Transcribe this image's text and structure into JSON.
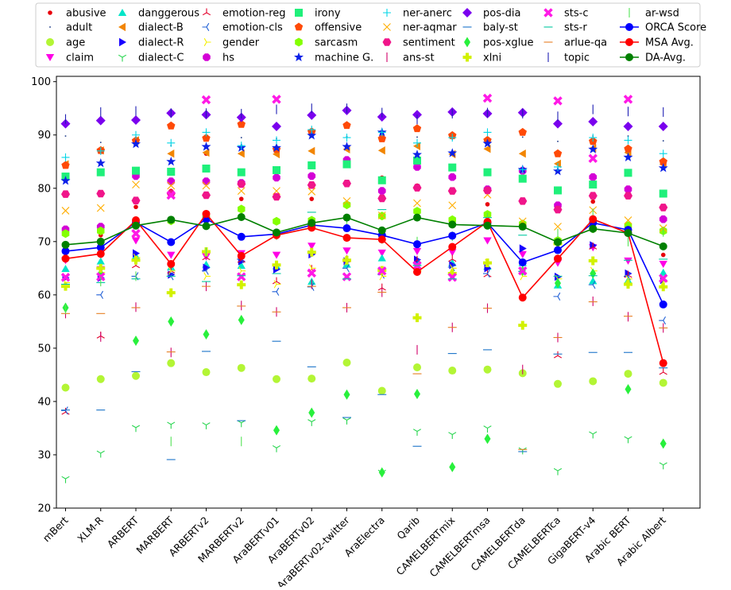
{
  "chart_data": {
    "type": "scatter",
    "title": "",
    "xlabel": "",
    "ylabel": "",
    "ylim": [
      20,
      101
    ],
    "yticks": [
      20,
      30,
      40,
      50,
      60,
      70,
      80,
      90,
      100
    ],
    "grid": false,
    "legend_position": "top",
    "categories": [
      "mBert",
      "XLM-R",
      "ARBERT",
      "MARBERT",
      "ARBERTv2",
      "MARBERTv2",
      "AraBERTv01",
      "AraBERTv02",
      "AraBERTv02-twitter",
      "AraElectra",
      "Qarib",
      "CAMELBERTmix",
      "CAMELBERTmsa",
      "CAMELBERTda",
      "CAMELBERTca",
      "GigaBERT-v4",
      "Arabic BERT",
      "Arabic Albert"
    ],
    "series": [
      {
        "name": "abusive",
        "marker": "dot",
        "color": "#e8000b",
        "values": [
          84.5,
          71.2,
          76.5,
          79.5,
          86.5,
          78.0,
          78.3,
          78.0,
          80.8,
          82.0,
          80.5,
          79.5,
          77.0,
          77.5,
          76.8,
          77.5,
          79.0,
          67.5
        ]
      },
      {
        "name": "adult",
        "marker": "pixel",
        "color": "#1f3c88",
        "values": [
          89.8,
          88.6,
          89.6,
          88.0,
          89.8,
          89.5,
          89.3,
          89.6,
          89.7,
          89.5,
          89.6,
          89.2,
          89.4,
          89.6,
          88.8,
          89.8,
          89.8,
          88.9
        ]
      },
      {
        "name": "age",
        "marker": "circle",
        "color": "#b3f535",
        "values": [
          42.6,
          44.2,
          44.8,
          47.2,
          45.5,
          46.3,
          44.2,
          44.3,
          47.3,
          42.0,
          46.4,
          45.8,
          46.0,
          45.3,
          43.3,
          43.8,
          45.2,
          43.5
        ]
      },
      {
        "name": "claim",
        "marker": "triangle_down",
        "color": "#ff00e6",
        "values": [
          66.5,
          64.8,
          70.2,
          67.5,
          67.2,
          67.8,
          67.5,
          69.2,
          68.3,
          67.9,
          68.2,
          68.0,
          70.2,
          67.6,
          66.0,
          68.9,
          66.4,
          65.8
        ]
      },
      {
        "name": "danggerous",
        "marker": "triangle_up",
        "color": "#00e5c8",
        "values": [
          64.9,
          66.3,
          67.3,
          65.2,
          65.7,
          65.5,
          65.4,
          62.5,
          65.7,
          66.9,
          66.1,
          66.0,
          65.3,
          66.0,
          61.8,
          62.6,
          62.7,
          64.2
        ]
      },
      {
        "name": "dialect-B",
        "marker": "triangle_left",
        "color": "#f28500",
        "values": [
          84.5,
          87.1,
          89.0,
          86.5,
          86.7,
          86.5,
          86.4,
          87.0,
          87.3,
          87.1,
          87.9,
          86.4,
          87.4,
          86.5,
          84.6,
          87.5,
          86.7,
          84.5
        ]
      },
      {
        "name": "dialect-R",
        "marker": "triangle_right",
        "color": "#1800ff",
        "values": [
          63.2,
          63.2,
          67.8,
          63.8,
          65.1,
          66.3,
          64.8,
          67.6,
          66.3,
          64.4,
          66.6,
          65.6,
          65.0,
          68.7,
          63.4,
          69.3,
          64.0,
          62.8
        ]
      },
      {
        "name": "dialect-C",
        "marker": "tri_down",
        "color": "#2ad651",
        "values": [
          25.5,
          30.3,
          35.1,
          35.7,
          35.6,
          36.0,
          31.3,
          36.2,
          36.5,
          26.7,
          34.4,
          33.8,
          35.0,
          30.9,
          27.0,
          33.9,
          33.0,
          28.1
        ]
      },
      {
        "name": "emotion-reg",
        "marker": "tri_up",
        "color": "#e4002b",
        "values": [
          38.0,
          52.3,
          65.5,
          64.5,
          67.0,
          66.5,
          62.5,
          64.8,
          66.6,
          61.3,
          66.5,
          66.7,
          63.8,
          64.5,
          48.6,
          69.0,
          63.7,
          45.5
        ]
      },
      {
        "name": "emotion-cls",
        "marker": "tri_left",
        "color": "#1f5fd6",
        "values": [
          38.3,
          60.0,
          63.5,
          63.5,
          64.5,
          66.7,
          60.6,
          61.5,
          65.0,
          63.8,
          66.0,
          65.2,
          64.0,
          64.4,
          59.7,
          61.9,
          63.5,
          55.2
        ]
      },
      {
        "name": "gender",
        "marker": "tri_right",
        "color": "#f4f000",
        "values": [
          62.3,
          64.2,
          67.0,
          64.5,
          63.5,
          64.5,
          62.0,
          65.0,
          66.3,
          63.5,
          64.5,
          65.0,
          66.0,
          63.5,
          63.0,
          64.5,
          63.0,
          62.5
        ]
      },
      {
        "name": "hs",
        "marker": "octagon",
        "color": "#d400d6",
        "values": [
          72.3,
          72.8,
          82.3,
          81.3,
          81.3,
          81.0,
          82.0,
          82.3,
          85.3,
          79.5,
          84.0,
          82.1,
          79.8,
          83.3,
          76.8,
          82.1,
          79.8,
          74.2
        ]
      },
      {
        "name": "irony",
        "marker": "square",
        "color": "#1ff07a",
        "values": [
          82.2,
          83.0,
          83.3,
          83.1,
          83.7,
          83.0,
          83.4,
          84.3,
          84.5,
          81.5,
          85.2,
          83.9,
          83.0,
          81.8,
          79.6,
          80.7,
          82.9,
          79.0
        ]
      },
      {
        "name": "offensive",
        "marker": "pentagon",
        "color": "#ff4a07",
        "values": [
          84.3,
          87.1,
          88.9,
          91.7,
          89.4,
          92.0,
          87.3,
          90.6,
          91.8,
          89.3,
          91.2,
          89.9,
          89.0,
          90.5,
          86.5,
          88.8,
          87.4,
          85.0
        ]
      },
      {
        "name": "sarcasm",
        "marker": "hexagon",
        "color": "#84ff00",
        "values": [
          71.5,
          72.0,
          73.2,
          73.9,
          74.5,
          76.1,
          73.8,
          74.0,
          76.9,
          74.8,
          75.7,
          74.1,
          75.1,
          73.3,
          70.2,
          72.4,
          73.0,
          72.0
        ]
      },
      {
        "name": "machine G.",
        "marker": "star",
        "color": "#0c21e8",
        "values": [
          81.4,
          84.7,
          88.3,
          85.0,
          87.8,
          87.6,
          87.6,
          89.9,
          87.8,
          90.5,
          86.3,
          86.6,
          88.4,
          83.5,
          83.2,
          87.3,
          85.8,
          83.8
        ]
      },
      {
        "name": "ner-anerc",
        "marker": "plus",
        "color": "#00d5e6",
        "values": [
          85.8,
          87.0,
          90.0,
          88.5,
          90.5,
          88.0,
          89.0,
          91.0,
          89.5,
          90.5,
          88.5,
          89.5,
          90.5,
          83.5,
          84.0,
          89.5,
          89.0,
          86.5
        ]
      },
      {
        "name": "ner-aqmar",
        "marker": "x",
        "color": "#ffae00",
        "values": [
          75.8,
          76.3,
          80.7,
          80.5,
          80.5,
          79.5,
          79.5,
          79.4,
          77.6,
          74.9,
          77.2,
          76.8,
          78.8,
          73.8,
          72.8,
          75.9,
          74.0,
          72.5
        ]
      },
      {
        "name": "sentiment",
        "marker": "hexagon2",
        "color": "#f0158a",
        "values": [
          78.9,
          79.0,
          77.7,
          79.0,
          78.7,
          80.8,
          78.4,
          80.6,
          80.9,
          78.1,
          80.1,
          79.5,
          79.6,
          77.6,
          76.0,
          78.6,
          78.6,
          76.4
        ]
      },
      {
        "name": "ans-st",
        "marker": "vline",
        "color": "#d1006a",
        "values": [
          56.5,
          52.1,
          57.7,
          49.2,
          61.6,
          58.0,
          56.8,
          62.0,
          57.6,
          60.5,
          49.7,
          53.9,
          57.5,
          46.0,
          52.0,
          58.8,
          55.9,
          53.8
        ]
      },
      {
        "name": "pos-dia",
        "marker": "diamond",
        "color": "#7a00ee",
        "values": [
          92.1,
          92.7,
          92.8,
          94.1,
          93.8,
          93.3,
          91.6,
          93.7,
          94.6,
          93.4,
          93.8,
          94.3,
          94.0,
          94.2,
          92.1,
          92.5,
          91.6,
          91.6
        ]
      },
      {
        "name": "baly-st",
        "marker": "hline",
        "color": "#1a73c9",
        "values": [
          38.4,
          38.4,
          45.6,
          29.1,
          49.4,
          36.4,
          51.3,
          46.5,
          37.0,
          41.3,
          31.6,
          49.0,
          49.7,
          30.6,
          48.9,
          49.2,
          49.2,
          46.3
        ]
      },
      {
        "name": "pos-xglue",
        "marker": "thin_diamond",
        "color": "#28f03c",
        "values": [
          57.6,
          64.0,
          51.4,
          55.0,
          52.6,
          55.3,
          34.6,
          37.9,
          41.3,
          26.7,
          41.4,
          27.7,
          33.0,
          64.5,
          62.2,
          64.0,
          42.3,
          32.1
        ]
      },
      {
        "name": "xlni",
        "marker": "plus_filled",
        "color": "#d2f100",
        "values": [
          61.6,
          65.0,
          66.5,
          60.4,
          68.1,
          61.9,
          65.6,
          68.0,
          66.5,
          64.6,
          55.7,
          64.0,
          66.0,
          54.3,
          69.6,
          66.4,
          62.0,
          61.5
        ]
      },
      {
        "name": "sts-c",
        "marker": "x_filled",
        "color": "#ff1ae6",
        "values": [
          63.3,
          63.4,
          71.5,
          78.7,
          96.6,
          63.4,
          96.7,
          64.1,
          63.4,
          64.5,
          65.5,
          63.3,
          96.9,
          64.5,
          96.4,
          85.6,
          96.7,
          63.1
        ]
      },
      {
        "name": "sts-r",
        "marker": "hline",
        "color": "#00c8a0",
        "values": [
          62.0,
          62.3,
          63.0,
          63.5,
          62.5,
          63.6,
          64.0,
          75.5,
          63.0,
          76.0,
          65.5,
          63.0,
          74.5,
          71.2,
          63.5,
          63.6,
          66.5,
          66.7
        ]
      },
      {
        "name": "arlue-qa",
        "marker": "hline",
        "color": "#e67e22",
        "values": [
          56.5,
          56.5,
          57.6,
          49.3,
          61.6,
          57.9,
          56.8,
          61.6,
          57.6,
          60.5,
          45.2,
          53.9,
          57.5,
          31.0,
          52.0,
          58.7,
          56.0,
          53.8
        ]
      },
      {
        "name": "topic",
        "marker": "vline",
        "color": "#1f1fb4",
        "values": [
          93.0,
          94.3,
          94.5,
          94.1,
          94.1,
          94.0,
          94.8,
          95.0,
          95.0,
          94.2,
          92.9,
          94.0,
          94.2,
          94.0,
          93.5,
          94.8,
          94.4,
          94.3
        ]
      },
      {
        "name": "ar-wsd",
        "marker": "vline",
        "color": "#53e356",
        "values": [
          57.3,
          62.5,
          63.5,
          32.5,
          68.0,
          32.5,
          71.2,
          73.0,
          73.5,
          70.5,
          70.0,
          71.0,
          74.5,
          65.5,
          71.5,
          75.3,
          70.0,
          71.8
        ]
      },
      {
        "name": "ORCA Score",
        "marker": "circle",
        "linestyle": "line",
        "color": "#0000ff",
        "values": [
          68.2,
          68.9,
          73.6,
          69.9,
          74.2,
          70.9,
          71.4,
          73.1,
          72.5,
          71.2,
          69.5,
          71.1,
          73.5,
          66.1,
          68.4,
          73.5,
          72.2,
          58.2
        ]
      },
      {
        "name": "MSA Avg.",
        "marker": "circle",
        "linestyle": "line",
        "color": "#ff0000",
        "values": [
          66.8,
          67.7,
          74.0,
          65.8,
          75.2,
          67.3,
          71.2,
          72.6,
          70.7,
          70.4,
          64.3,
          69.0,
          73.7,
          59.5,
          66.8,
          74.2,
          71.6,
          47.2
        ]
      },
      {
        "name": "DA-Avg.",
        "marker": "circle",
        "linestyle": "line",
        "color": "#008000",
        "values": [
          69.4,
          70.0,
          73.0,
          74.1,
          72.9,
          74.6,
          71.7,
          73.5,
          74.5,
          72.1,
          74.5,
          73.2,
          73.0,
          72.8,
          69.9,
          72.4,
          71.6,
          69.1
        ]
      }
    ]
  }
}
